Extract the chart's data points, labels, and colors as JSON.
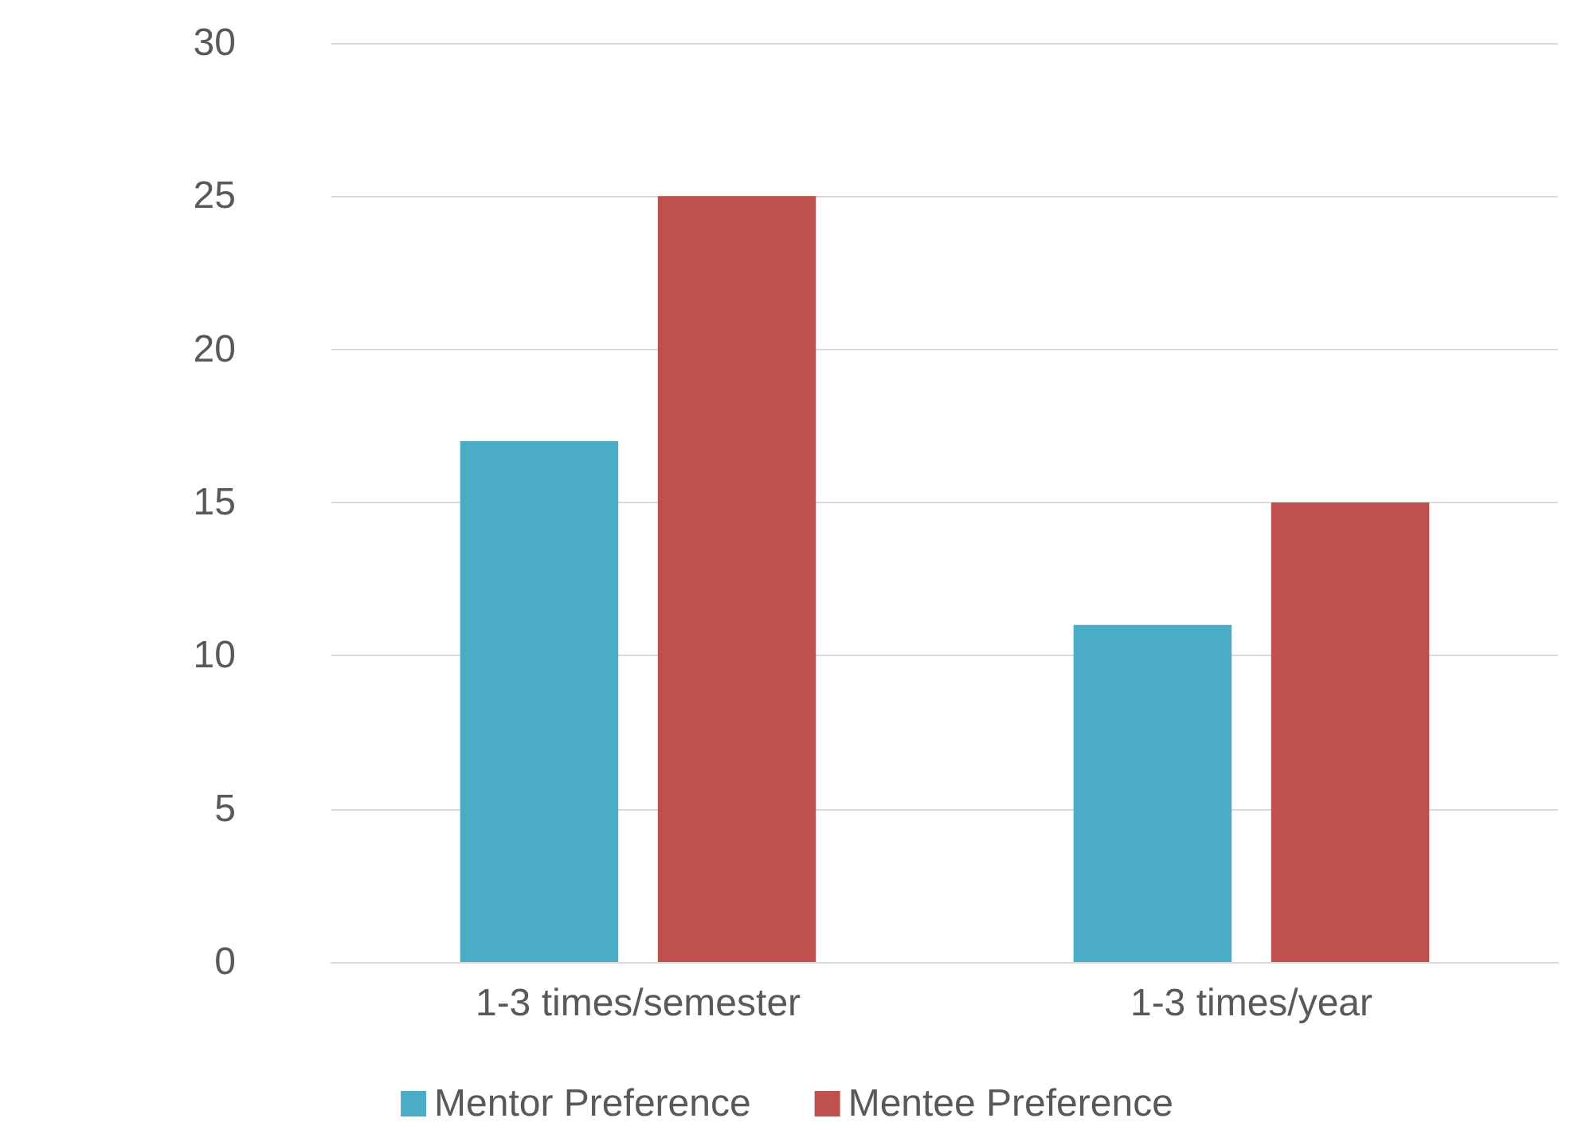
{
  "chart_data": {
    "type": "bar",
    "categories": [
      "1-3 times/semester",
      "1-3 times/year"
    ],
    "series": [
      {
        "name": "Mentor Preference",
        "color": "#4bacc6",
        "values": [
          17,
          11
        ]
      },
      {
        "name": "Mentee Preference",
        "color": "#c0504d",
        "values": [
          25,
          15
        ]
      }
    ],
    "ylim": [
      0,
      30
    ],
    "yticks": [
      0,
      5,
      10,
      15,
      20,
      25,
      30
    ],
    "grid": "y",
    "legend": "bottom"
  }
}
